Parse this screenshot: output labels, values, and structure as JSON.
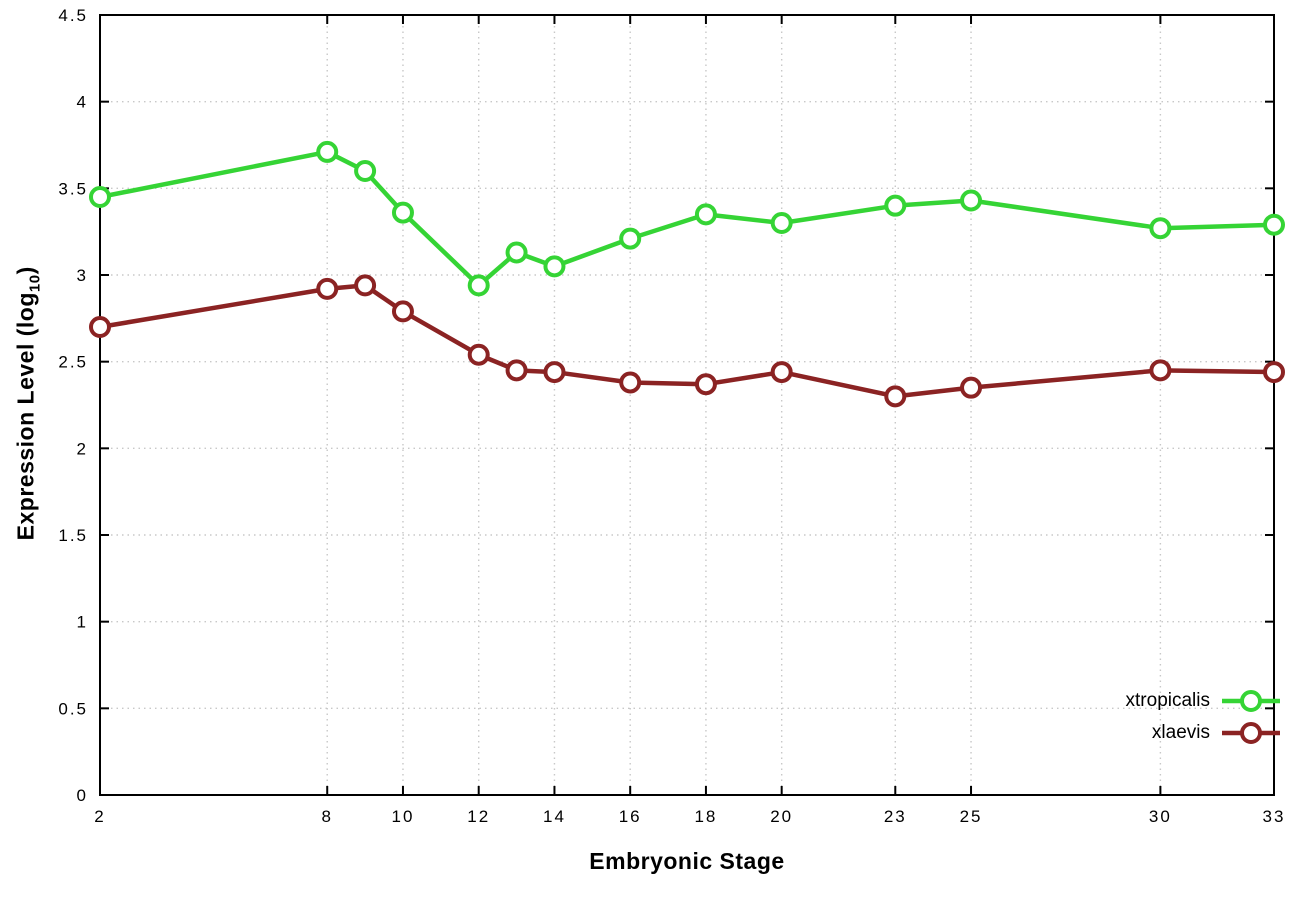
{
  "chart_data": {
    "type": "line",
    "x": [
      2,
      8,
      9,
      10,
      12,
      13,
      14,
      16,
      18,
      20,
      23,
      25,
      30,
      33
    ],
    "series": [
      {
        "name": "xtropicalis",
        "color": "#35d435",
        "values": [
          3.45,
          3.71,
          3.6,
          3.36,
          2.94,
          3.13,
          3.05,
          3.21,
          3.35,
          3.3,
          3.4,
          3.43,
          3.27,
          3.29
        ]
      },
      {
        "name": "xlaevis",
        "color": "#8b2323",
        "values": [
          2.7,
          2.92,
          2.94,
          2.79,
          2.54,
          2.45,
          2.44,
          2.38,
          2.37,
          2.44,
          2.3,
          2.35,
          2.45,
          2.44
        ]
      }
    ],
    "xlabel": "Embryonic Stage",
    "ylabel_prefix": "Expression Level (log",
    "ylabel_sub": "10",
    "ylabel_suffix": ")",
    "xlim": [
      2,
      33
    ],
    "ylim": [
      0,
      4.5
    ],
    "xticks": [
      2,
      8,
      10,
      12,
      14,
      16,
      18,
      20,
      23,
      25,
      30,
      33
    ],
    "xtick_labels": [
      "2",
      "8",
      "10",
      "12",
      "14",
      "16",
      "18",
      "20",
      "23",
      "25",
      "30",
      "33"
    ],
    "yticks": [
      0,
      0.5,
      1,
      1.5,
      2,
      2.5,
      3,
      3.5,
      4,
      4.5
    ],
    "ytick_labels": [
      "0",
      "0.5",
      "1",
      "1.5",
      "2",
      "2.5",
      "3",
      "3.5",
      "4",
      "4.5"
    ],
    "grid": true,
    "legend_position": "bottom-right"
  },
  "style": {
    "background": "#ffffff",
    "axis_color": "#000000",
    "grid_color": "#c8c8c8",
    "marker_fill": "#ffffff"
  }
}
